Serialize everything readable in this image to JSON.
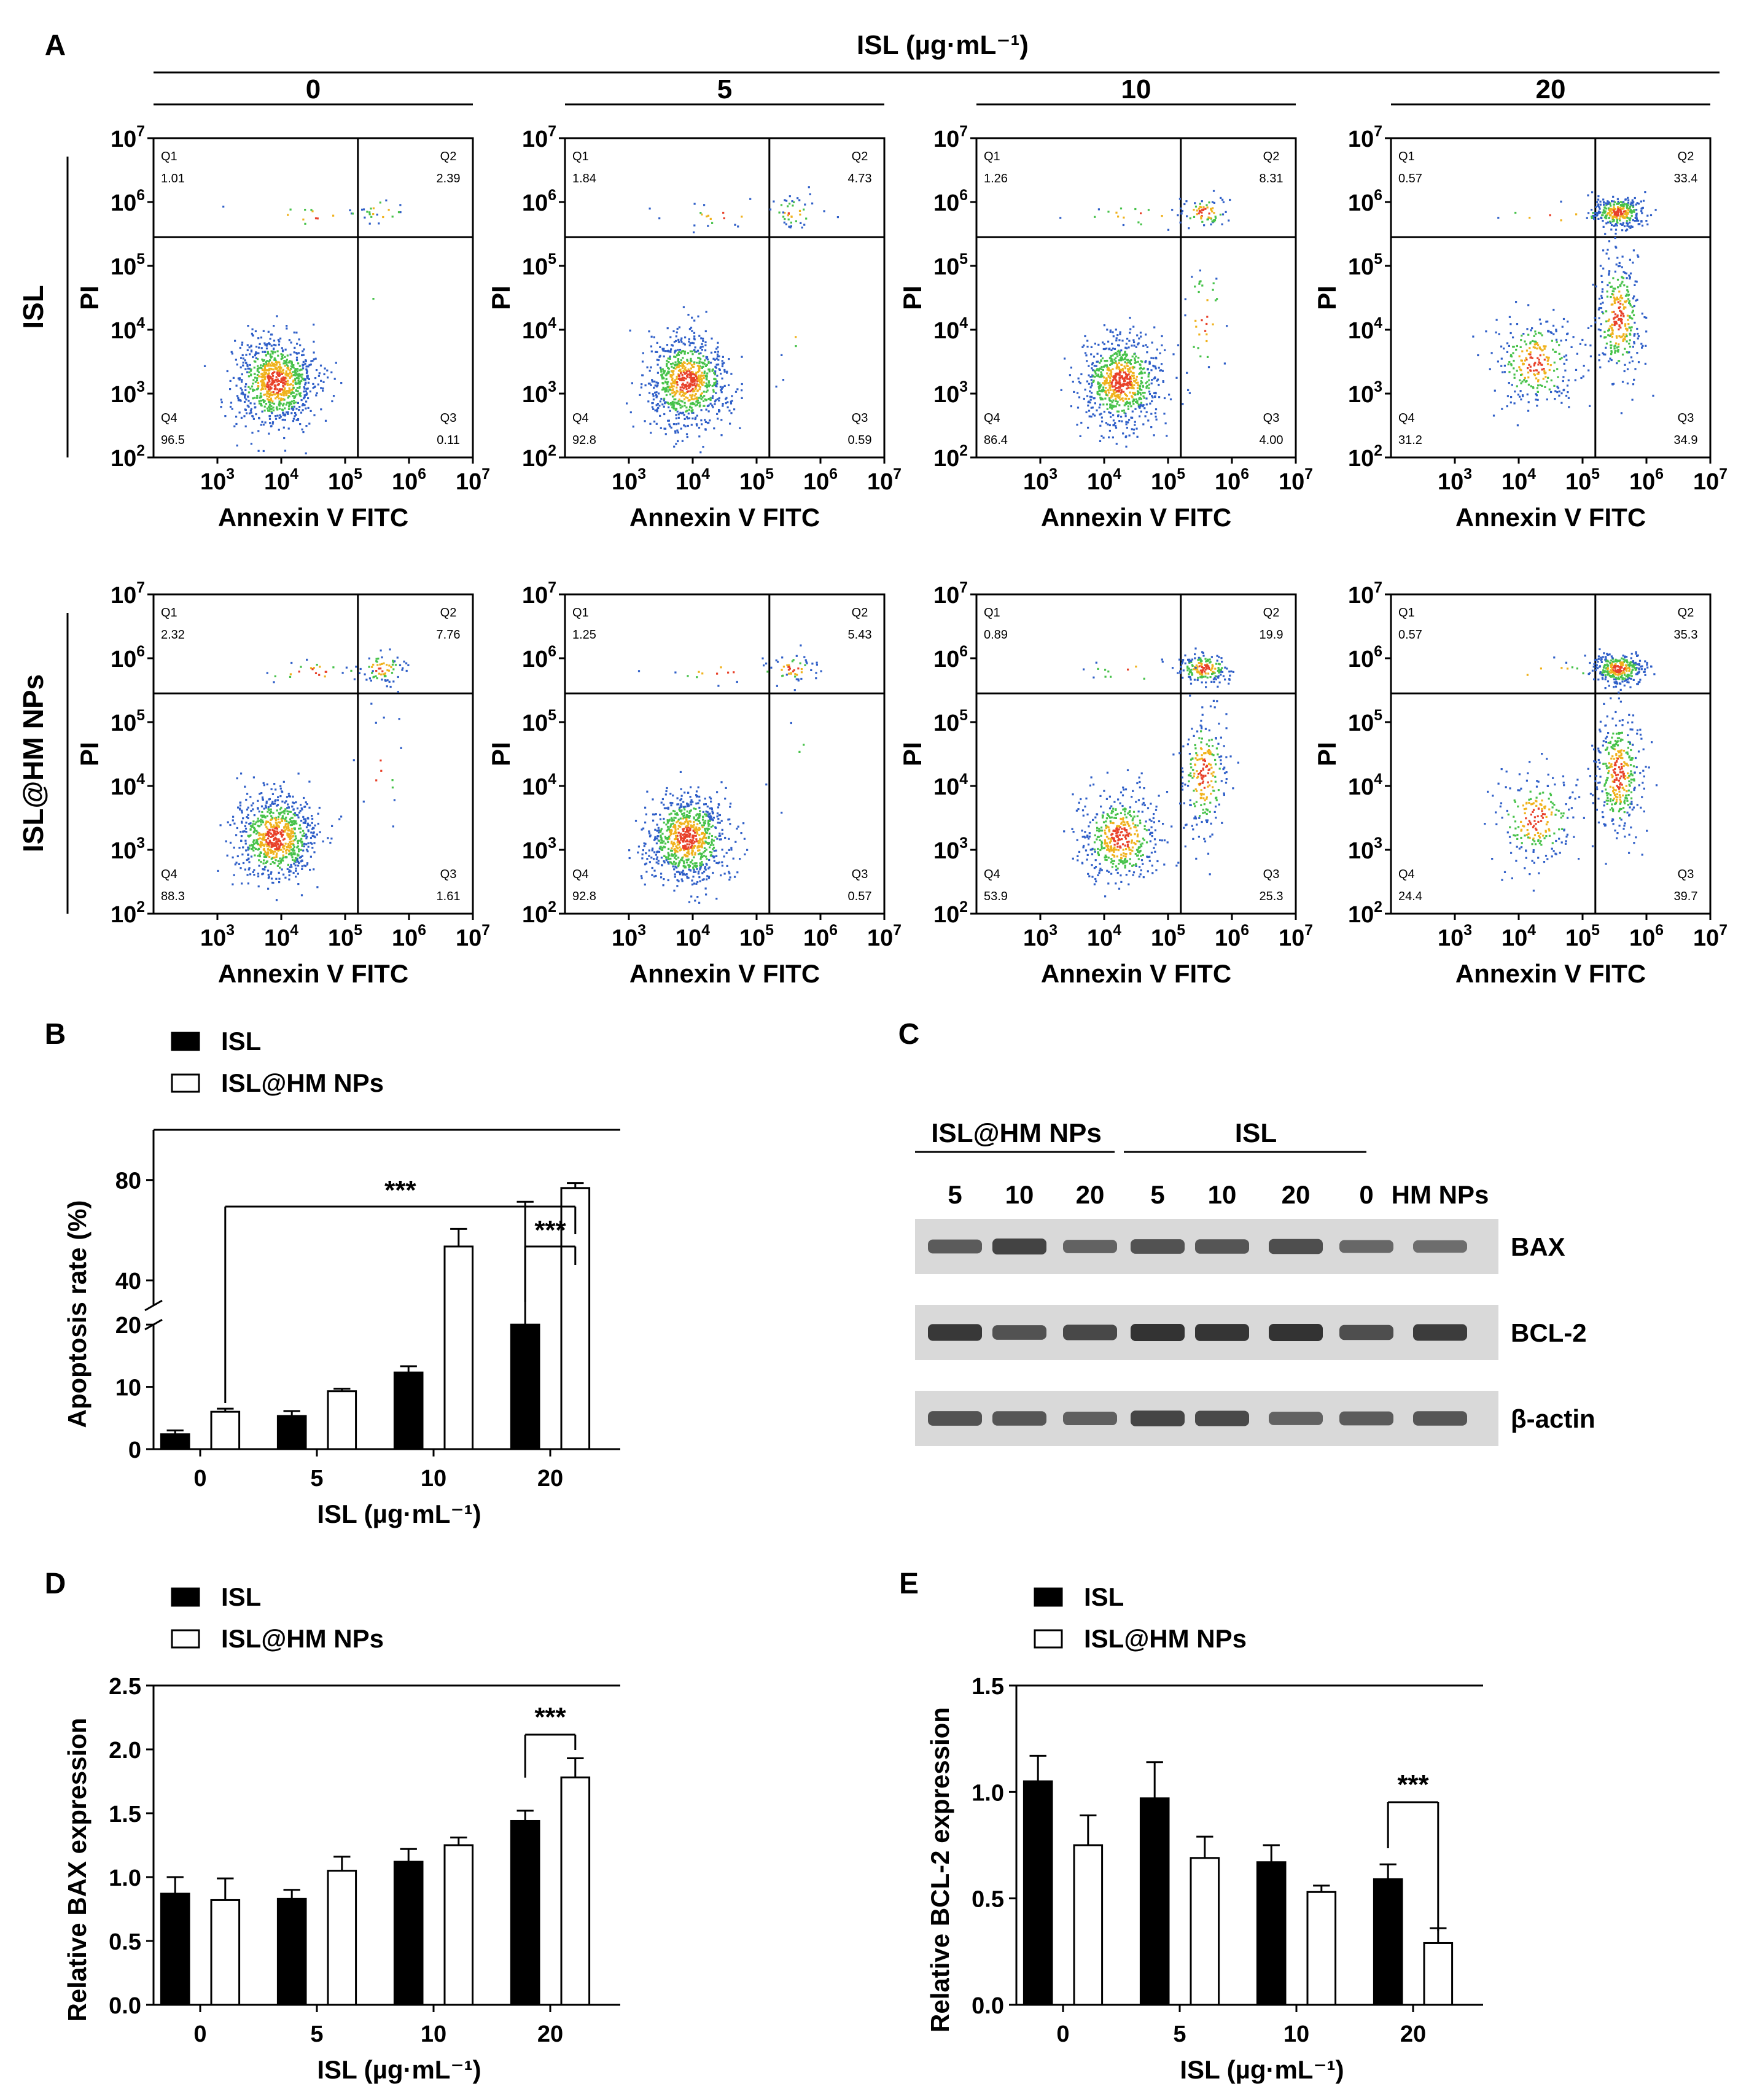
{
  "figure": {
    "panel_labels": {
      "A": "A",
      "B": "B",
      "C": "C",
      "D": "D",
      "E": "E"
    },
    "flow": {
      "title": "ISL (µg·mL⁻¹)",
      "concentrations": [
        "0",
        "5",
        "10",
        "20"
      ],
      "rows": [
        {
          "label": "ISL",
          "panels": [
            {
              "Q1": "1.01",
              "Q2": "2.39",
              "Q3": "0.11",
              "Q4": "96.5"
            },
            {
              "Q1": "1.84",
              "Q2": "4.73",
              "Q3": "0.59",
              "Q4": "92.8"
            },
            {
              "Q1": "1.26",
              "Q2": "8.31",
              "Q3": "4.00",
              "Q4": "86.4"
            },
            {
              "Q1": "0.57",
              "Q2": "33.4",
              "Q3": "34.9",
              "Q4": "31.2"
            }
          ]
        },
        {
          "label": "ISL@HM NPs",
          "panels": [
            {
              "Q1": "2.32",
              "Q2": "7.76",
              "Q3": "1.61",
              "Q4": "88.3"
            },
            {
              "Q1": "1.25",
              "Q2": "5.43",
              "Q3": "0.57",
              "Q4": "92.8"
            },
            {
              "Q1": "0.89",
              "Q2": "19.9",
              "Q3": "25.3",
              "Q4": "53.9"
            },
            {
              "Q1": "0.57",
              "Q2": "35.3",
              "Q3": "39.7",
              "Q4": "24.4"
            }
          ]
        }
      ],
      "quadrant_names": [
        "Q1",
        "Q2",
        "Q3",
        "Q4"
      ],
      "x_axis_label": "Annexin V FITC",
      "y_axis_label": "PI",
      "tick_base": "10",
      "tick_exponents": [
        "2",
        "3",
        "4",
        "5",
        "6",
        "7"
      ],
      "x_tick_exponents": [
        "3",
        "4",
        "5",
        "6",
        "7"
      ]
    },
    "western": {
      "group_labels": [
        "ISL@HM NPs",
        "ISL"
      ],
      "lane_labels": [
        "5",
        "10",
        "20",
        "5",
        "10",
        "20",
        "0",
        "HM NPs"
      ],
      "proteins": [
        "BAX",
        "BCL-2",
        "β-actin"
      ],
      "band_intensity": {
        "BAX": [
          0.62,
          0.85,
          0.55,
          0.7,
          0.68,
          0.75,
          0.5,
          0.45
        ],
        "BCL-2": [
          0.95,
          0.7,
          0.8,
          1.0,
          0.98,
          1.0,
          0.75,
          0.92
        ],
        "β-actin": [
          0.7,
          0.68,
          0.58,
          0.82,
          0.78,
          0.55,
          0.62,
          0.68
        ]
      }
    },
    "colors": {
      "isl_bar": "#000000",
      "nps_bar": "#ffffff",
      "blot_bg": "#d9d9d9",
      "band": "#2a2a2a"
    }
  },
  "chart_data": [
    {
      "id": "B",
      "type": "bar",
      "categories": [
        "0",
        "5",
        "10",
        "20"
      ],
      "series": [
        {
          "name": "ISL",
          "values": [
            2.39,
            5.32,
            12.31,
            68.3
          ],
          "errors": [
            0.6,
            0.8,
            1.0,
            3.0
          ]
        },
        {
          "name": "ISL@HM NPs",
          "values": [
            6.0,
            9.3,
            53.5,
            76.8
          ],
          "errors": [
            0.5,
            0.4,
            7.0,
            2.0
          ]
        }
      ],
      "xlabel": "ISL (µg·mL⁻¹)",
      "ylabel": "Apoptosis rate (%)",
      "yticks": [
        "0",
        "10",
        "20",
        "40",
        "80"
      ],
      "axis_break": [
        20,
        30
      ],
      "annotations": [
        "***",
        "***"
      ]
    },
    {
      "id": "D",
      "type": "bar",
      "categories": [
        "0",
        "5",
        "10",
        "20"
      ],
      "series": [
        {
          "name": "ISL",
          "values": [
            0.87,
            0.83,
            1.12,
            1.44
          ],
          "errors": [
            0.13,
            0.07,
            0.1,
            0.08
          ]
        },
        {
          "name": "ISL@HM NPs",
          "values": [
            0.82,
            1.05,
            1.25,
            1.78
          ],
          "errors": [
            0.17,
            0.11,
            0.06,
            0.15
          ]
        }
      ],
      "xlabel": "ISL (µg·mL⁻¹)",
      "ylabel": "Relative BAX expression",
      "ylim": [
        0,
        2.5
      ],
      "yticks": [
        "0.0",
        "0.5",
        "1.0",
        "1.5",
        "2.0",
        "2.5"
      ],
      "annotations": [
        "***"
      ]
    },
    {
      "id": "E",
      "type": "bar",
      "categories": [
        "0",
        "5",
        "10",
        "20"
      ],
      "series": [
        {
          "name": "ISL",
          "values": [
            1.05,
            0.97,
            0.67,
            0.59
          ],
          "errors": [
            0.12,
            0.17,
            0.08,
            0.07
          ]
        },
        {
          "name": "ISL@HM NPs",
          "values": [
            0.75,
            0.69,
            0.53,
            0.29
          ],
          "errors": [
            0.14,
            0.1,
            0.03,
            0.07
          ]
        }
      ],
      "xlabel": "ISL (µg·mL⁻¹)",
      "ylabel": "Relative BCL-2 expression",
      "ylim": [
        0,
        1.5
      ],
      "yticks": [
        "0.0",
        "0.5",
        "1.0",
        "1.5"
      ],
      "annotations": [
        "***"
      ]
    }
  ]
}
